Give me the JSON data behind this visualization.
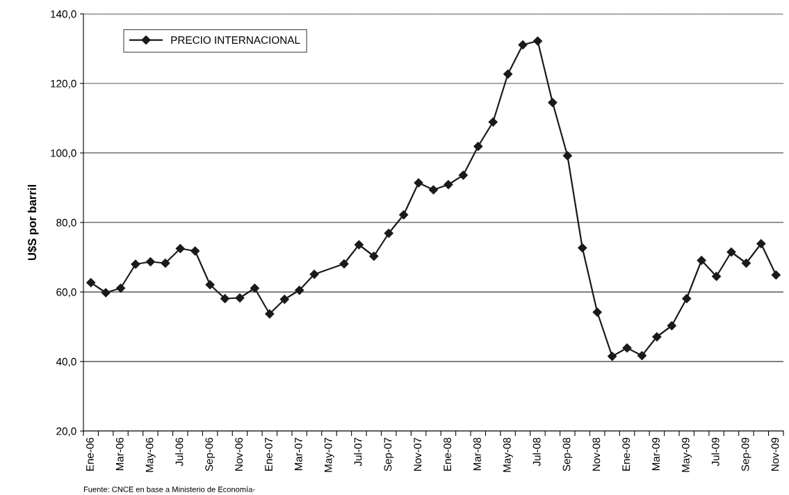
{
  "chart_data": {
    "type": "line",
    "ylabel": "U$S por barril",
    "categories": [
      "Ene-06",
      null,
      "Mar-06",
      null,
      "May-06",
      null,
      "Jul-06",
      null,
      "Sep-06",
      null,
      "Nov-06",
      null,
      "Ene-07",
      null,
      "Mar-07",
      null,
      "May-07",
      null,
      "Jul-07",
      null,
      "Sep-07",
      null,
      "Nov-07",
      null,
      "Ene-08",
      null,
      "Mar-08",
      null,
      "May-08",
      null,
      "Jul-08",
      null,
      "Sep-08",
      null,
      "Nov-08",
      null,
      "Ene-09",
      null,
      "Mar-09",
      null,
      "May-09",
      null,
      "Jul-09",
      null,
      "Sep-09",
      null,
      "Nov-09"
    ],
    "series": [
      {
        "name": "PRECIO INTERNACIONAL",
        "color": "#1a1a1a",
        "values": [
          62.7,
          59.8,
          61.1,
          68.0,
          68.7,
          68.3,
          72.5,
          71.8,
          62.1,
          58.1,
          58.3,
          61.1,
          53.7,
          57.9,
          60.5,
          65.1,
          null,
          68.1,
          73.6,
          70.3,
          76.9,
          82.2,
          91.4,
          89.4,
          90.9,
          93.6,
          101.9,
          108.9,
          122.7,
          131.1,
          132.2,
          114.5,
          99.2,
          72.7,
          54.2,
          41.5,
          43.9,
          41.7,
          47.1,
          50.3,
          58.1,
          69.1,
          64.5,
          71.5,
          68.3,
          73.9,
          64.9
        ]
      }
    ],
    "ylim": [
      20,
      140
    ],
    "yticks": [
      {
        "value": 20,
        "label": "20,0"
      },
      {
        "value": 40,
        "label": "40,0"
      },
      {
        "value": 60,
        "label": "60,0"
      },
      {
        "value": 80,
        "label": "80,0"
      },
      {
        "value": 100,
        "label": "100,0"
      },
      {
        "value": 120,
        "label": "120,0"
      },
      {
        "value": 140,
        "label": "140,0"
      }
    ],
    "grid": "y",
    "legend": "top left",
    "marker": "diamond",
    "line_style": "solid",
    "annotations": [
      "Fuente: CNCE en base a Ministerio de Economía-"
    ]
  }
}
